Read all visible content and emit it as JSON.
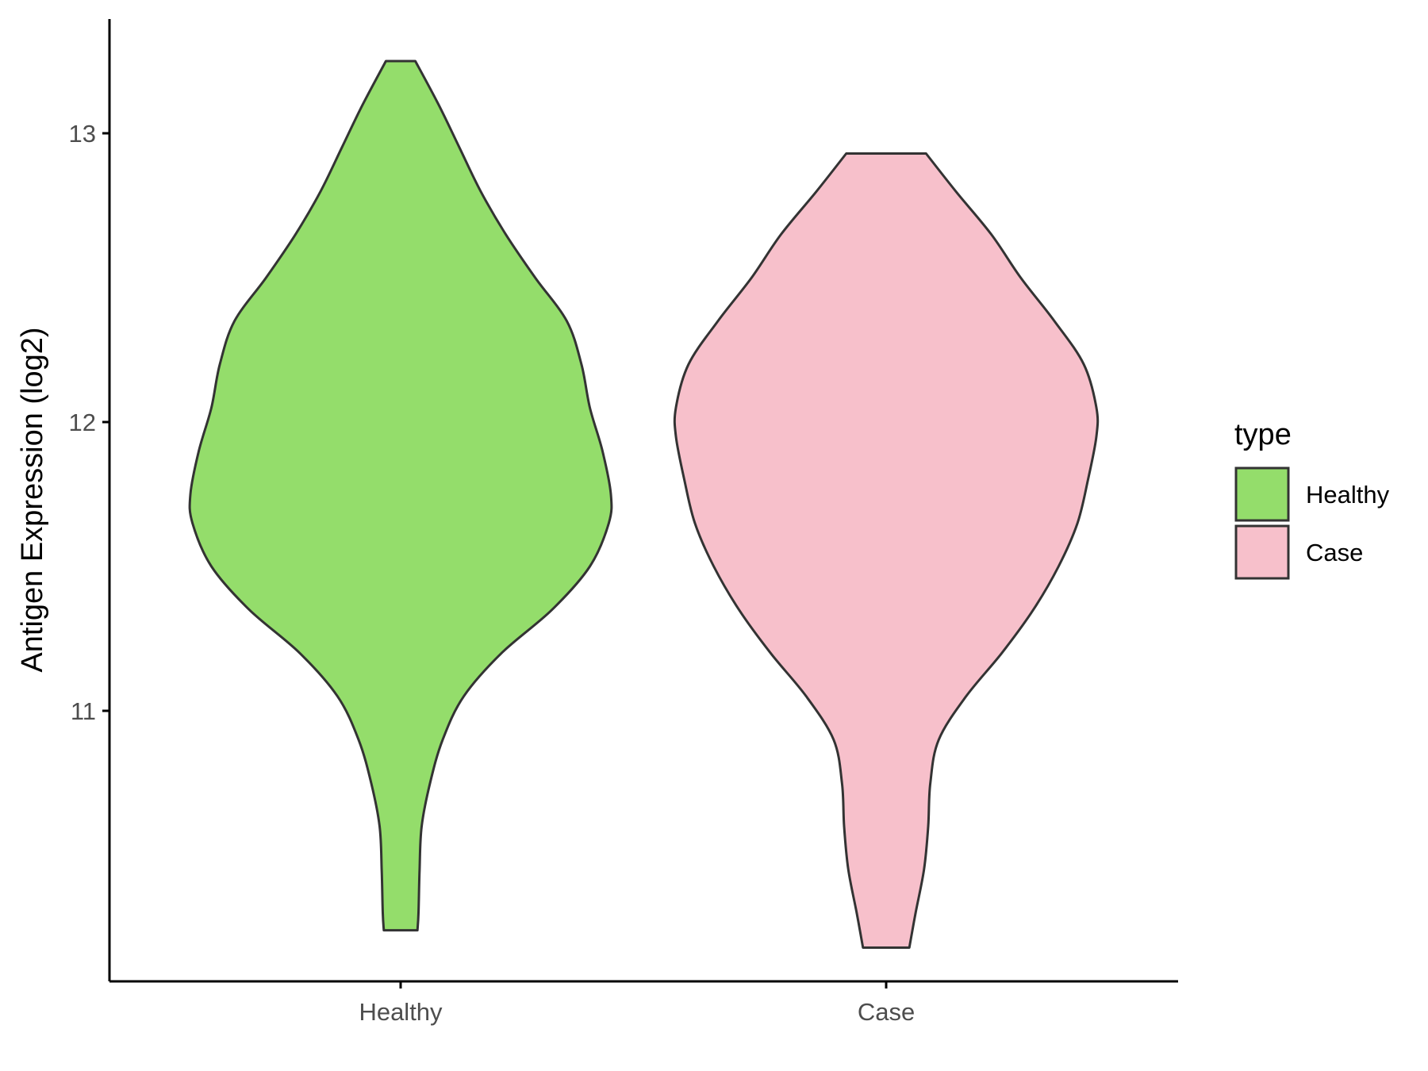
{
  "chart_data": {
    "type": "violin",
    "ylabel": "Antigen Expression (log2)",
    "xlabel": "",
    "y_ticks": [
      11,
      12,
      13
    ],
    "ylim": [
      10.05,
      13.4
    ],
    "categories": [
      "Healthy",
      "Case"
    ],
    "legend": {
      "title": "type",
      "position": "right",
      "entries": [
        {
          "label": "Healthy",
          "color": "#94dd6b"
        },
        {
          "label": "Case",
          "color": "#f7c0cb"
        }
      ]
    },
    "series": [
      {
        "name": "Healthy",
        "color": "#94dd6b",
        "min": 10.24,
        "max": 13.25,
        "density_profile": [
          [
            10.24,
            0.08
          ],
          [
            10.3,
            0.085
          ],
          [
            10.45,
            0.09
          ],
          [
            10.6,
            0.1
          ],
          [
            10.75,
            0.14
          ],
          [
            10.9,
            0.2
          ],
          [
            11.05,
            0.3
          ],
          [
            11.2,
            0.48
          ],
          [
            11.35,
            0.72
          ],
          [
            11.5,
            0.9
          ],
          [
            11.65,
            0.99
          ],
          [
            11.75,
            1.0
          ],
          [
            11.9,
            0.96
          ],
          [
            12.05,
            0.9
          ],
          [
            12.2,
            0.86
          ],
          [
            12.35,
            0.79
          ],
          [
            12.5,
            0.64
          ],
          [
            12.65,
            0.5
          ],
          [
            12.8,
            0.38
          ],
          [
            12.95,
            0.28
          ],
          [
            13.1,
            0.18
          ],
          [
            13.25,
            0.07
          ]
        ]
      },
      {
        "name": "Case",
        "color": "#f7c0cb",
        "min": 10.18,
        "max": 12.93,
        "density_profile": [
          [
            10.18,
            0.11
          ],
          [
            10.3,
            0.14
          ],
          [
            10.45,
            0.18
          ],
          [
            10.6,
            0.2
          ],
          [
            10.75,
            0.21
          ],
          [
            10.9,
            0.25
          ],
          [
            11.05,
            0.38
          ],
          [
            11.2,
            0.55
          ],
          [
            11.35,
            0.7
          ],
          [
            11.5,
            0.82
          ],
          [
            11.65,
            0.91
          ],
          [
            11.8,
            0.96
          ],
          [
            11.95,
            1.0
          ],
          [
            12.05,
            1.0
          ],
          [
            12.2,
            0.94
          ],
          [
            12.35,
            0.8
          ],
          [
            12.5,
            0.64
          ],
          [
            12.65,
            0.5
          ],
          [
            12.8,
            0.33
          ],
          [
            12.93,
            0.19
          ]
        ]
      }
    ]
  }
}
